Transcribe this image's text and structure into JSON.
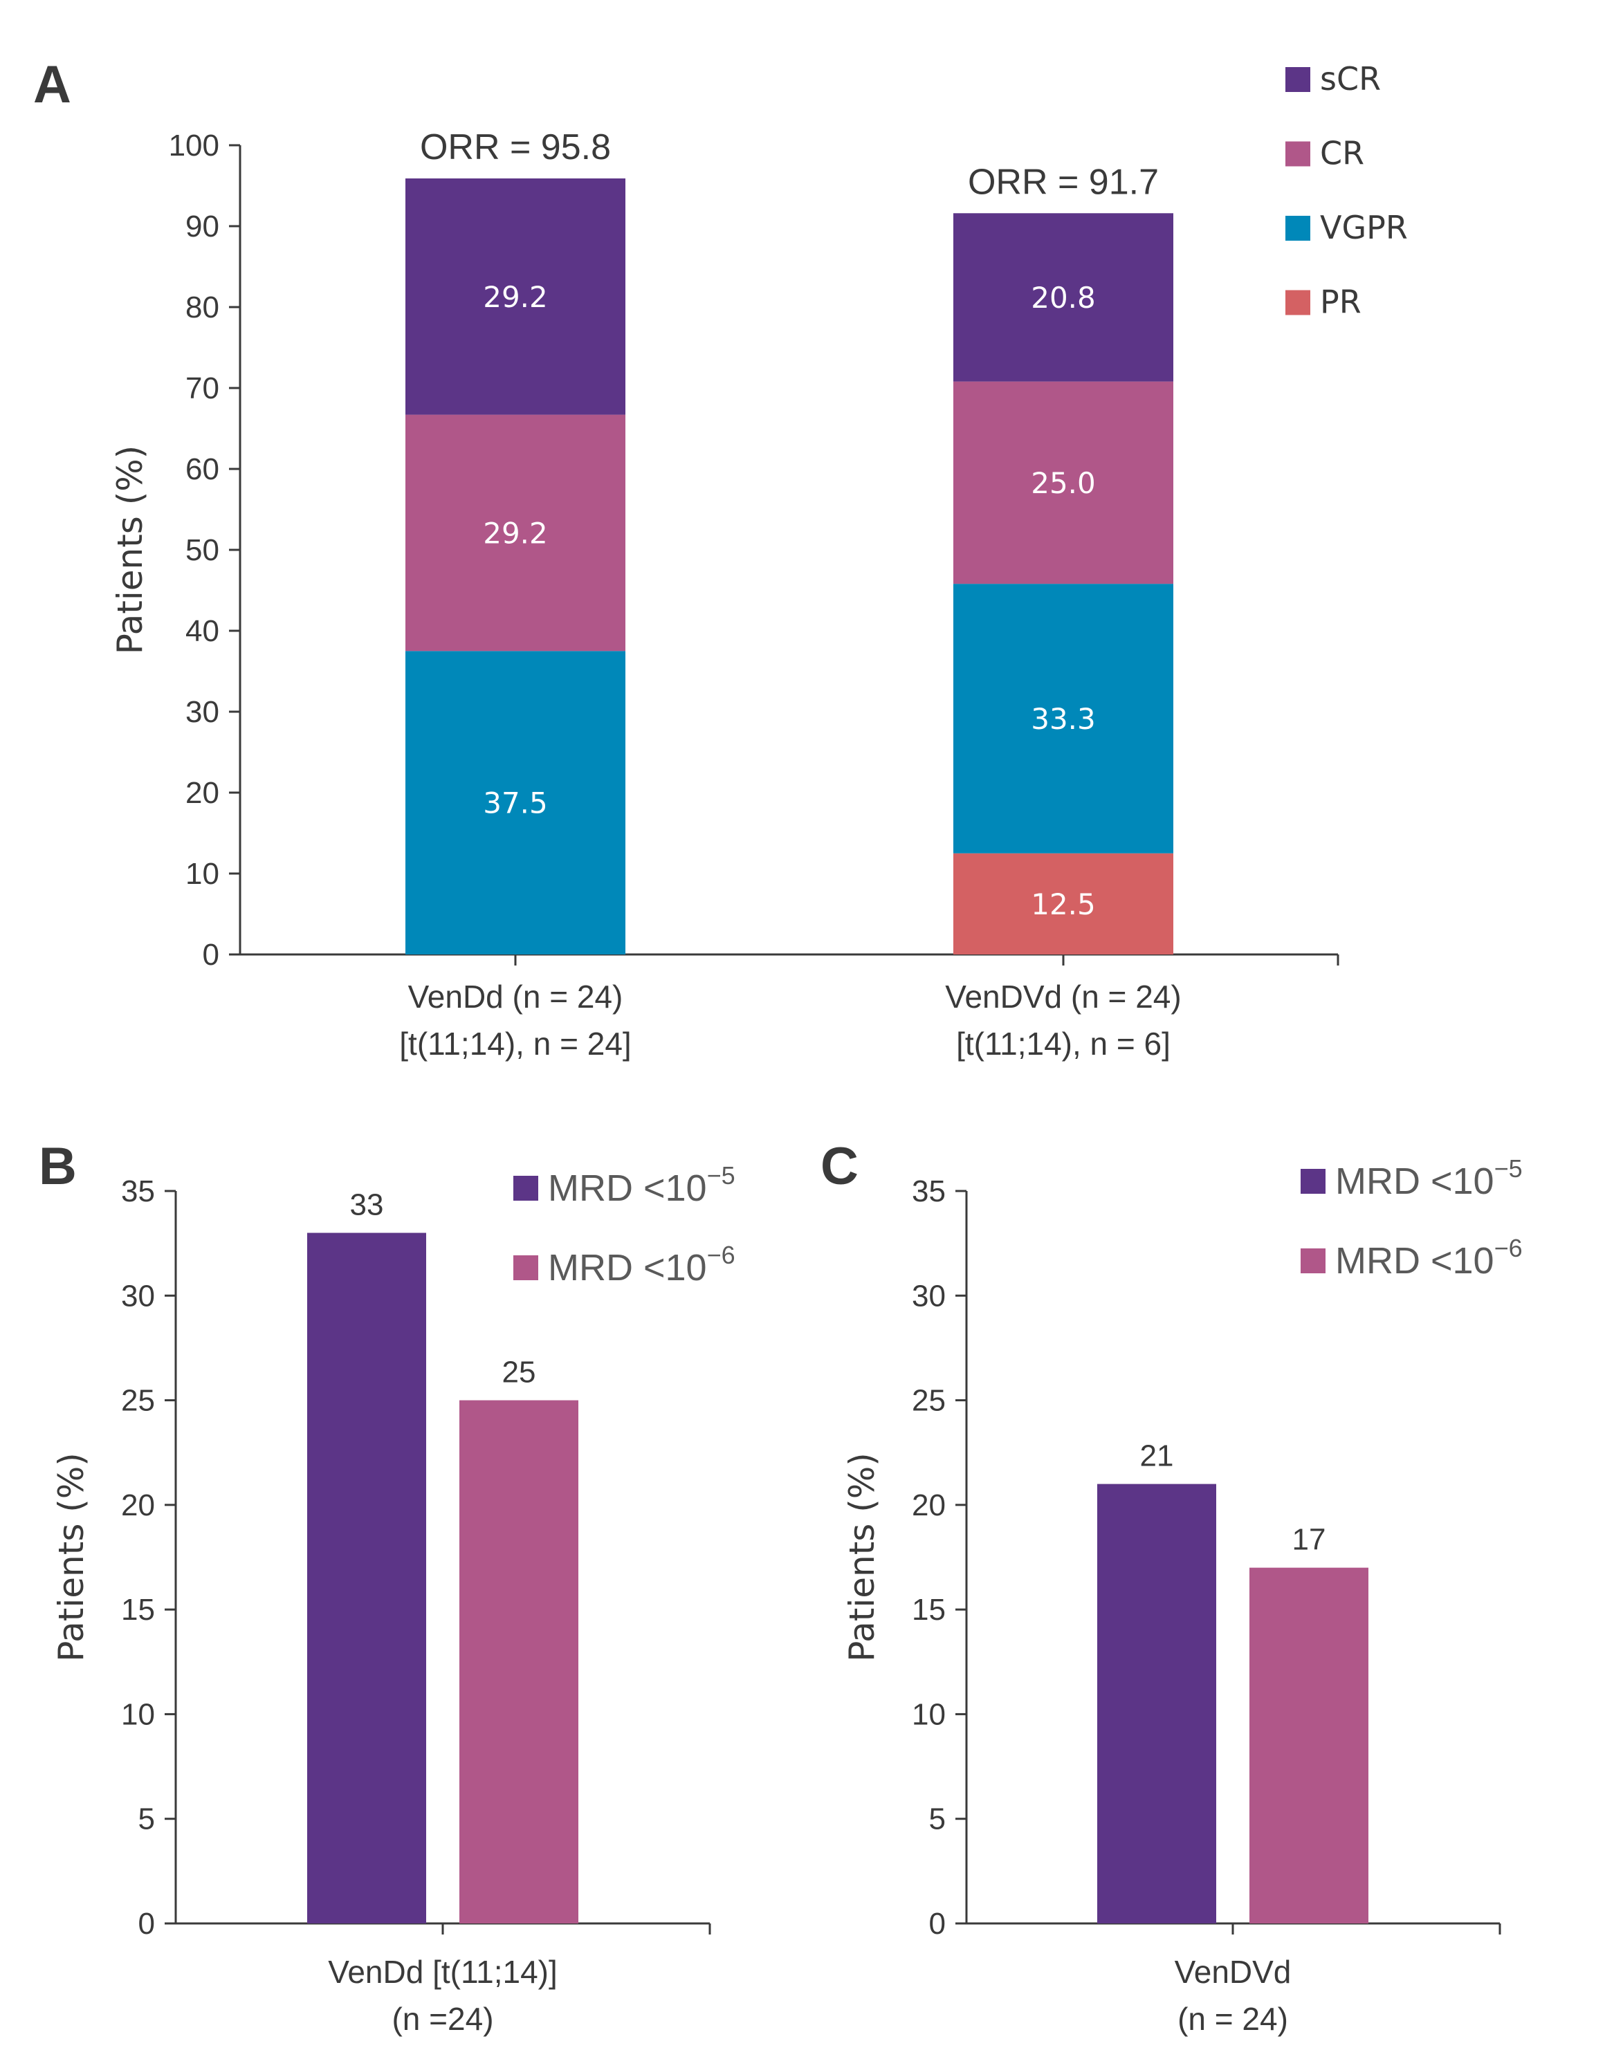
{
  "chart_data": [
    {
      "panel": "A",
      "type": "bar",
      "stacked": true,
      "title": "",
      "xlabel": "",
      "ylabel": "Patients (%)",
      "ylim": [
        0,
        100
      ],
      "yticks": [
        0,
        10,
        20,
        30,
        40,
        50,
        60,
        70,
        80,
        90,
        100
      ],
      "grid": false,
      "legend_position": "top-right",
      "categories": [
        [
          "VenDd (n = 24)",
          "[t(11;14), n = 24]"
        ],
        [
          "VenDVd (n = 24)",
          "[t(11;14), n = 6]"
        ]
      ],
      "series": [
        {
          "name": "PR",
          "color": "#d46163",
          "values": [
            0,
            12.5
          ],
          "labels": [
            "",
            "12.5"
          ]
        },
        {
          "name": "VGPR",
          "color": "#0088b9",
          "values": [
            37.5,
            33.3
          ],
          "labels": [
            "37.5",
            "33.3"
          ]
        },
        {
          "name": "CR",
          "color": "#b05789",
          "values": [
            29.2,
            25.0
          ],
          "labels": [
            "29.2",
            "25.0"
          ]
        },
        {
          "name": "sCR",
          "color": "#5c3587",
          "values": [
            29.2,
            20.8
          ],
          "labels": [
            "29.2",
            "20.8"
          ]
        }
      ],
      "legend_order": [
        "sCR",
        "CR",
        "VGPR",
        "PR"
      ],
      "totals": [
        95.8,
        91.7
      ],
      "total_labels": [
        "ORR = 95.8",
        "ORR = 91.7"
      ]
    },
    {
      "panel": "B",
      "type": "bar",
      "title": "",
      "xlabel": "",
      "ylabel": "Patients (%)",
      "ylim": [
        0,
        35
      ],
      "yticks": [
        0,
        5,
        10,
        15,
        20,
        25,
        30,
        35
      ],
      "grid": false,
      "legend_position": "top-right",
      "categories": [
        [
          "VenDd [t(11;14)]",
          "(n =24)"
        ]
      ],
      "series": [
        {
          "name": "MRD <10",
          "sup": "−5",
          "color": "#5c3587",
          "values": [
            33
          ],
          "labels": [
            "33"
          ]
        },
        {
          "name": "MRD <10",
          "sup": "−6",
          "color": "#b05789",
          "values": [
            25
          ],
          "labels": [
            "25"
          ]
        }
      ]
    },
    {
      "panel": "C",
      "type": "bar",
      "title": "",
      "xlabel": "",
      "ylabel": "Patients (%)",
      "ylim": [
        0,
        35
      ],
      "yticks": [
        0,
        5,
        10,
        15,
        20,
        25,
        30,
        35
      ],
      "grid": false,
      "legend_position": "top-right",
      "categories": [
        [
          "VenDVd",
          "(n = 24)"
        ]
      ],
      "series": [
        {
          "name": "MRD <10",
          "sup": "−5",
          "color": "#5c3587",
          "values": [
            21
          ],
          "labels": [
            "21"
          ]
        },
        {
          "name": "MRD <10",
          "sup": "−6",
          "color": "#b05789",
          "values": [
            17
          ],
          "labels": [
            "17"
          ]
        }
      ]
    }
  ]
}
